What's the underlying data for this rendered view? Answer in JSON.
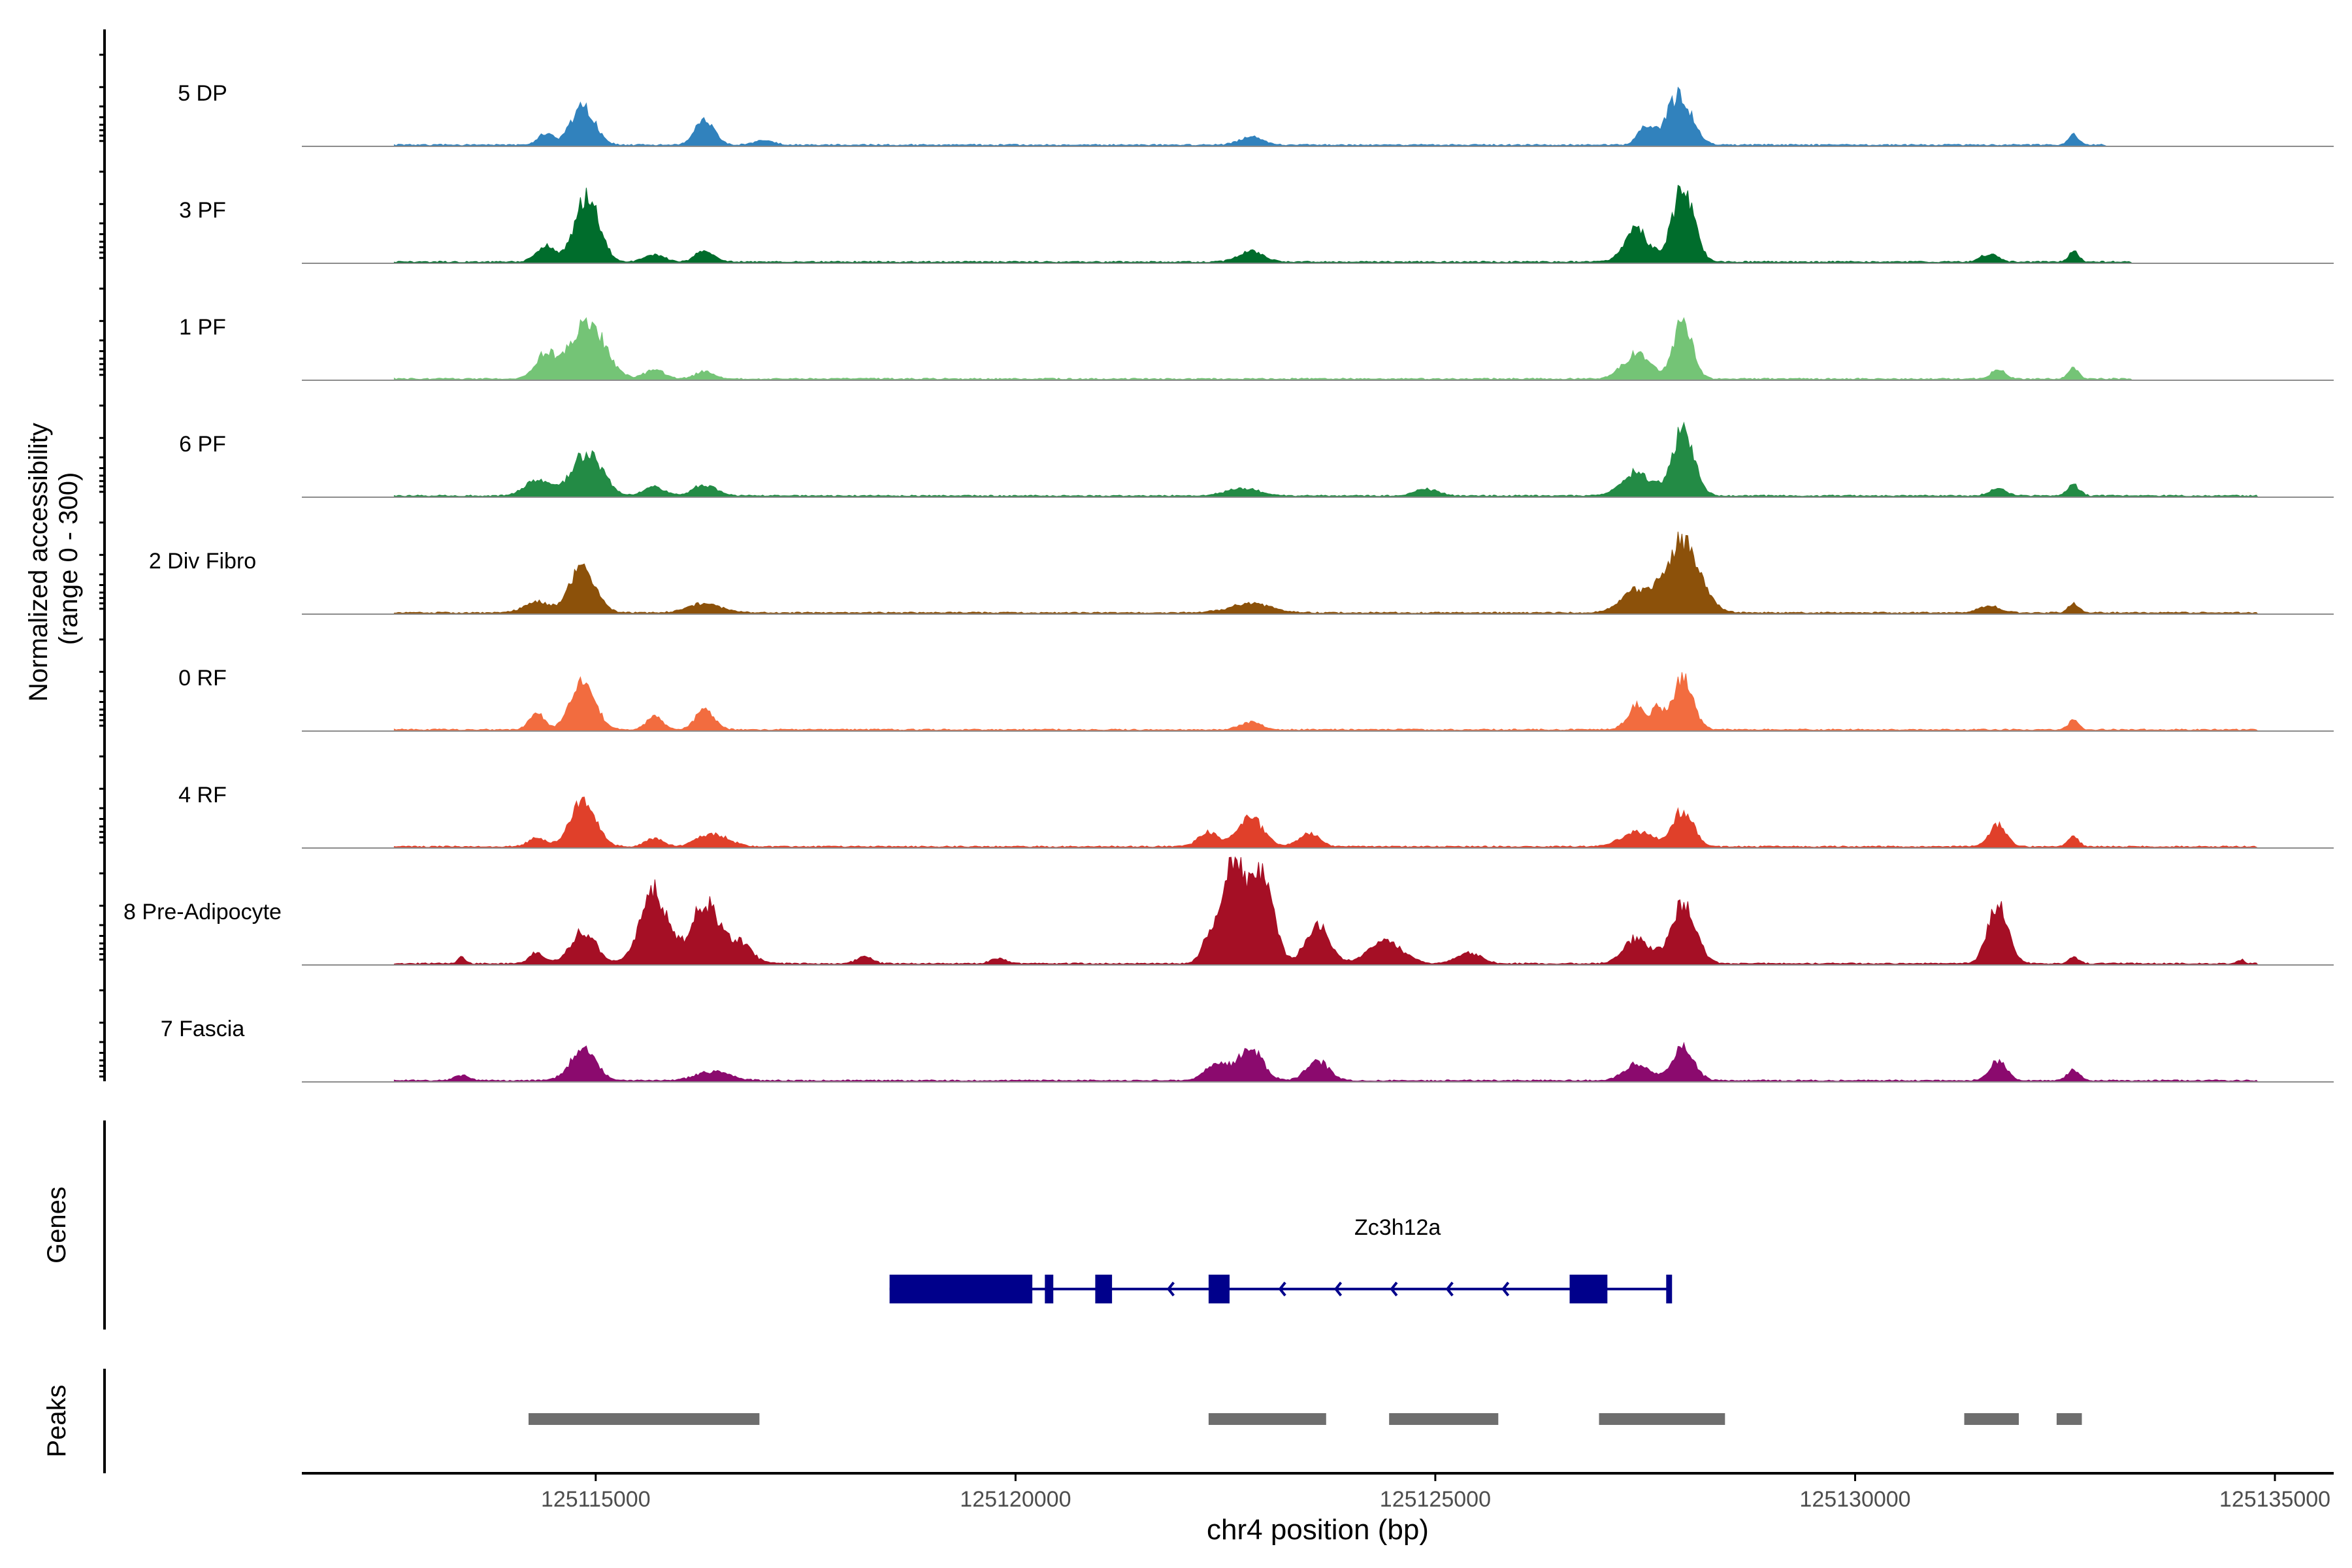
{
  "chart_data": {
    "type": "area",
    "title": "",
    "ylabel_line1": "Normalized accessibility",
    "ylabel_line2": "(range 0 - 300)",
    "xlabel": "chr4 position (bp)",
    "region": {
      "chrom": "chr4",
      "start": 125111500,
      "end": 125135700
    },
    "ylim": [
      0,
      300
    ],
    "xticks": [
      125115000,
      125120000,
      125125000,
      125130000,
      125135000
    ],
    "xtick_labels": [
      "125115000",
      "125120000",
      "125125000",
      "125130000",
      "125135000"
    ],
    "tracks": [
      {
        "name": "5 DP",
        "color": "#3182bd",
        "track_start": 125112600,
        "track_end": 125133000,
        "peaks": [
          [
            125114400,
            32,
            90
          ],
          [
            125114850,
            105,
            140
          ],
          [
            125116300,
            70,
            110
          ],
          [
            125117000,
            12,
            120
          ],
          [
            125122800,
            22,
            140
          ],
          [
            125127500,
            45,
            90
          ],
          [
            125127900,
            135,
            150
          ],
          [
            125132600,
            28,
            60
          ]
        ]
      },
      {
        "name": "3 PF",
        "color": "#006d2c",
        "track_start": 125112600,
        "track_end": 125133300,
        "peaks": [
          [
            125114400,
            45,
            110
          ],
          [
            125114900,
            190,
            140
          ],
          [
            125115700,
            20,
            120
          ],
          [
            125116300,
            30,
            110
          ],
          [
            125122800,
            28,
            150
          ],
          [
            125127400,
            90,
            140
          ],
          [
            125127950,
            200,
            130
          ],
          [
            125131600,
            22,
            100
          ],
          [
            125132600,
            28,
            60
          ]
        ]
      },
      {
        "name": "1 PF",
        "color": "#74c476",
        "track_start": 125112600,
        "track_end": 125133300,
        "peaks": [
          [
            125114400,
            65,
            120
          ],
          [
            125114900,
            160,
            200
          ],
          [
            125115700,
            25,
            120
          ],
          [
            125116300,
            20,
            110
          ],
          [
            125127400,
            70,
            160
          ],
          [
            125127950,
            160,
            110
          ],
          [
            125131700,
            28,
            80
          ],
          [
            125132600,
            28,
            60
          ]
        ]
      },
      {
        "name": "6 PF",
        "color": "#238b45",
        "track_start": 125112600,
        "track_end": 125134800,
        "peaks": [
          [
            125114300,
            45,
            150
          ],
          [
            125114900,
            120,
            180
          ],
          [
            125115700,
            25,
            120
          ],
          [
            125116300,
            30,
            140
          ],
          [
            125122700,
            20,
            200
          ],
          [
            125124900,
            18,
            140
          ],
          [
            125127400,
            65,
            170
          ],
          [
            125127950,
            180,
            130
          ],
          [
            125131700,
            20,
            100
          ],
          [
            125132600,
            30,
            70
          ]
        ]
      },
      {
        "name": "2 Div Fibro",
        "color": "#8c510a",
        "track_start": 125112600,
        "track_end": 125134800,
        "peaks": [
          [
            125114300,
            30,
            150
          ],
          [
            125114850,
            130,
            150
          ],
          [
            125116300,
            25,
            200
          ],
          [
            125122800,
            25,
            250
          ],
          [
            125127400,
            60,
            180
          ],
          [
            125127950,
            200,
            200
          ],
          [
            125131600,
            20,
            120
          ],
          [
            125132600,
            25,
            60
          ]
        ]
      },
      {
        "name": "0 RF",
        "color": "#f26c3f",
        "track_start": 125112600,
        "track_end": 125134800,
        "peaks": [
          [
            125114300,
            45,
            90
          ],
          [
            125114850,
            145,
            140
          ],
          [
            125115700,
            35,
            100
          ],
          [
            125116300,
            55,
            110
          ],
          [
            125122800,
            20,
            130
          ],
          [
            125127400,
            65,
            110
          ],
          [
            125127650,
            55,
            70
          ],
          [
            125127950,
            140,
            120
          ],
          [
            125132600,
            25,
            60
          ]
        ]
      },
      {
        "name": "4 RF",
        "color": "#e0402a",
        "track_start": 125112600,
        "track_end": 125134800,
        "peaks": [
          [
            125114300,
            25,
            100
          ],
          [
            125114850,
            130,
            150
          ],
          [
            125115700,
            25,
            100
          ],
          [
            125116400,
            35,
            180
          ],
          [
            125122300,
            40,
            120
          ],
          [
            125122800,
            80,
            150
          ],
          [
            125123500,
            38,
            120
          ],
          [
            125127400,
            40,
            190
          ],
          [
            125127950,
            100,
            120
          ],
          [
            125131700,
            60,
            100
          ],
          [
            125132600,
            30,
            60
          ]
        ]
      },
      {
        "name": "8 Pre-Adipocyte",
        "color": "#a50f25",
        "track_start": 125112600,
        "track_end": 125134800,
        "peaks": [
          [
            125113400,
            20,
            40
          ],
          [
            125114300,
            30,
            90
          ],
          [
            125114850,
            90,
            150
          ],
          [
            125115700,
            200,
            170
          ],
          [
            125116300,
            170,
            150
          ],
          [
            125116700,
            60,
            150
          ],
          [
            125118200,
            20,
            90
          ],
          [
            125119800,
            15,
            90
          ],
          [
            125122300,
            60,
            90
          ],
          [
            125122600,
            280,
            140
          ],
          [
            125122950,
            230,
            130
          ],
          [
            125123600,
            110,
            140
          ],
          [
            125124400,
            60,
            200
          ],
          [
            125125400,
            30,
            140
          ],
          [
            125127400,
            70,
            150
          ],
          [
            125127950,
            160,
            150
          ],
          [
            125131700,
            160,
            120
          ],
          [
            125132600,
            18,
            60
          ],
          [
            125134600,
            12,
            40
          ]
        ]
      },
      {
        "name": "7 Fascia",
        "color": "#8b0a6e",
        "track_start": 125112600,
        "track_end": 125134800,
        "peaks": [
          [
            125113400,
            15,
            80
          ],
          [
            125114850,
            85,
            150
          ],
          [
            125116400,
            25,
            200
          ],
          [
            125122400,
            45,
            140
          ],
          [
            125122800,
            90,
            140
          ],
          [
            125123600,
            55,
            130
          ],
          [
            125127400,
            45,
            150
          ],
          [
            125127950,
            90,
            130
          ],
          [
            125131700,
            55,
            100
          ],
          [
            125132600,
            30,
            70
          ]
        ]
      }
    ],
    "genes_label": "Genes",
    "gene": {
      "name": "Zc3h12a",
      "strand": "-",
      "color": "#00008b",
      "start": 125118500,
      "end": 125127800,
      "exons": [
        [
          125118500,
          125120200
        ],
        [
          125120350,
          125120450
        ],
        [
          125120950,
          125121150
        ],
        [
          125122300,
          125122550
        ],
        [
          125126600,
          125127050
        ],
        [
          125127750,
          125127800
        ]
      ]
    },
    "peaks_label": "Peaks",
    "peak_color": "#6e6e6e",
    "peak_regions": [
      [
        125114200,
        125116950
      ],
      [
        125122300,
        125123700
      ],
      [
        125124450,
        125125750
      ],
      [
        125126950,
        125128450
      ],
      [
        125131300,
        125131950
      ],
      [
        125132400,
        125132700
      ]
    ]
  }
}
